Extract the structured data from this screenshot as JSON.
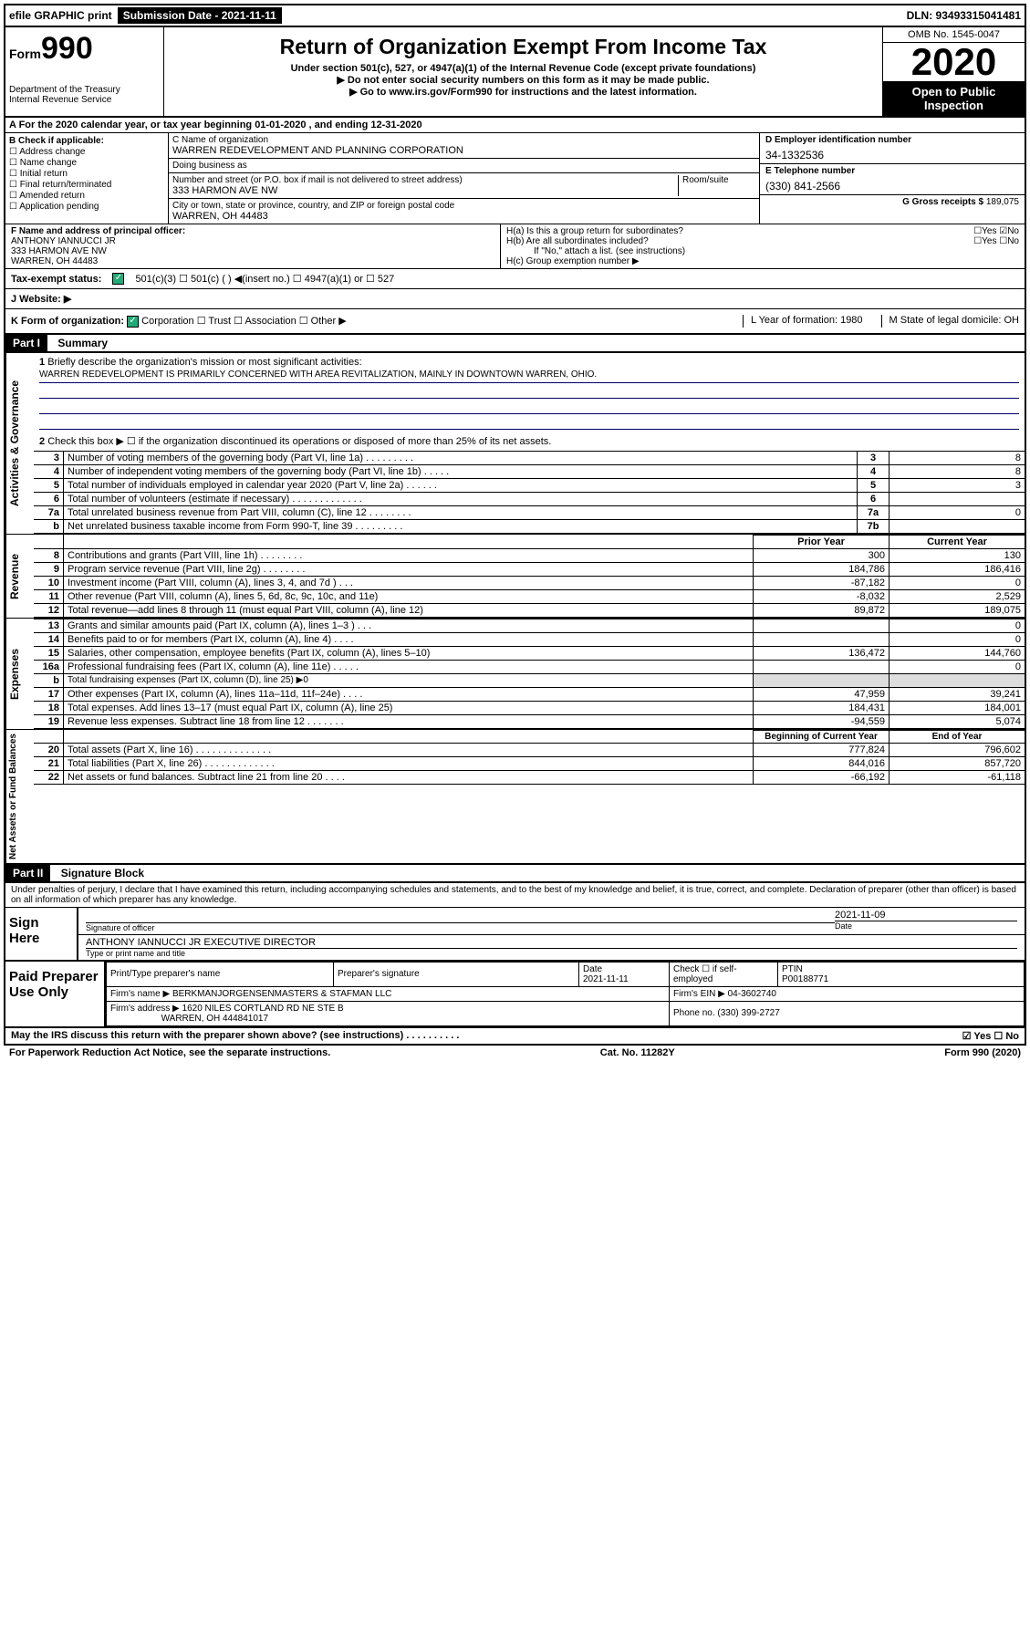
{
  "top": {
    "efile": "efile GRAPHIC print",
    "submission": "Submission Date - 2021-11-11",
    "dln": "DLN: 93493315041481"
  },
  "header": {
    "form": "Form",
    "num": "990",
    "dept": "Department of the Treasury\nInternal Revenue Service",
    "title": "Return of Organization Exempt From Income Tax",
    "sub1": "Under section 501(c), 527, or 4947(a)(1) of the Internal Revenue Code (except private foundations)",
    "sub2": "▶ Do not enter social security numbers on this form as it may be made public.",
    "goto": "▶ Go to www.irs.gov/Form990 for instructions and the latest information.",
    "omb": "OMB No. 1545-0047",
    "year": "2020",
    "open": "Open to Public Inspection"
  },
  "A": "A For the 2020 calendar year, or tax year beginning 01-01-2020    , and ending 12-31-2020",
  "B": {
    "label": "B Check if applicable:",
    "items": [
      "☐ Address change",
      "☐ Name change",
      "☐ Initial return",
      "☐ Final return/terminated",
      "☐ Amended return",
      "☐ Application pending"
    ]
  },
  "C": {
    "name_label": "C Name of organization",
    "name": "WARREN REDEVELOPMENT AND PLANNING CORPORATION",
    "dba_label": "Doing business as",
    "dba": "",
    "addr_label": "Number and street (or P.O. box if mail is not delivered to street address)",
    "room_label": "Room/suite",
    "addr": "333 HARMON AVE NW",
    "city_label": "City or town, state or province, country, and ZIP or foreign postal code",
    "city": "WARREN, OH  44483"
  },
  "D": {
    "label": "D Employer identification number",
    "val": "34-1332536"
  },
  "E": {
    "label": "E Telephone number",
    "val": "(330) 841-2566"
  },
  "G": {
    "label": "G Gross receipts $",
    "val": "189,075"
  },
  "F": {
    "label": "F  Name and address of principal officer:",
    "name": "ANTHONY IANNUCCI JR",
    "addr": "333 HARMON AVE NW",
    "city": "WARREN, OH  44483"
  },
  "H": {
    "a": "H(a)  Is this a group return for subordinates?",
    "a_yn": "☐Yes ☑No",
    "b": "H(b)  Are all subordinates included?",
    "b_yn": "☐Yes ☐No",
    "b_note": "If \"No,\" attach a list. (see instructions)",
    "c": "H(c)  Group exemption number ▶"
  },
  "I": {
    "label": "Tax-exempt status:",
    "opts": "501(c)(3)    ☐  501(c) (  ) ◀(insert no.)    ☐  4947(a)(1) or   ☐  527"
  },
  "J": "J   Website: ▶",
  "K": {
    "label": "K Form of organization:",
    "opts": "Corporation  ☐ Trust  ☐ Association  ☐ Other ▶",
    "L": "L Year of formation: 1980",
    "M": "M State of legal domicile: OH"
  },
  "part1": "Part I",
  "part1_title": "Summary",
  "governance": {
    "l1": "Briefly describe the organization's mission or most significant activities:",
    "mission": "WARREN REDEVELOPMENT IS PRIMARILY CONCERNED WITH AREA REVITALIZATION, MAINLY IN DOWNTOWN WARREN, OHIO.",
    "l2": "Check this box ▶ ☐  if the organization discontinued its operations or disposed of more than 25% of its net assets.",
    "rows": [
      {
        "n": "3",
        "d": "Number of voting members of the governing body (Part VI, line 1a)  .   .   .   .   .   .   .   .   .",
        "b": "3",
        "v": "8"
      },
      {
        "n": "4",
        "d": "Number of independent voting members of the governing body (Part VI, line 1b)  .   .   .   .   .",
        "b": "4",
        "v": "8"
      },
      {
        "n": "5",
        "d": "Total number of individuals employed in calendar year 2020 (Part V, line 2a)  .   .   .   .   .   .",
        "b": "5",
        "v": "3"
      },
      {
        "n": "6",
        "d": "Total number of volunteers (estimate if necessary)  .   .   .   .   .   .   .   .   .   .   .   .   .",
        "b": "6",
        "v": ""
      },
      {
        "n": "7a",
        "d": "Total unrelated business revenue from Part VIII, column (C), line 12  .   .   .   .   .   .   .   .",
        "b": "7a",
        "v": "0"
      },
      {
        "n": "b",
        "d": "Net unrelated business taxable income from Form 990-T, line 39  .   .   .   .   .   .   .   .   .",
        "b": "7b",
        "v": ""
      }
    ]
  },
  "revenue": {
    "head_prior": "Prior Year",
    "head_cur": "Current Year",
    "rows": [
      {
        "n": "8",
        "d": "Contributions and grants (Part VIII, line 1h)  .   .   .   .   .   .   .   .",
        "p": "300",
        "c": "130"
      },
      {
        "n": "9",
        "d": "Program service revenue (Part VIII, line 2g)  .   .   .   .   .   .   .   .",
        "p": "184,786",
        "c": "186,416"
      },
      {
        "n": "10",
        "d": "Investment income (Part VIII, column (A), lines 3, 4, and 7d )  .   .   .",
        "p": "-87,182",
        "c": "0"
      },
      {
        "n": "11",
        "d": "Other revenue (Part VIII, column (A), lines 5, 6d, 8c, 9c, 10c, and 11e)",
        "p": "-8,032",
        "c": "2,529"
      },
      {
        "n": "12",
        "d": "Total revenue—add lines 8 through 11 (must equal Part VIII, column (A), line 12)",
        "p": "89,872",
        "c": "189,075"
      }
    ]
  },
  "expenses": {
    "rows": [
      {
        "n": "13",
        "d": "Grants and similar amounts paid (Part IX, column (A), lines 1–3 )  .   .   .",
        "p": "",
        "c": "0"
      },
      {
        "n": "14",
        "d": "Benefits paid to or for members (Part IX, column (A), line 4)  .   .   .   .",
        "p": "",
        "c": "0"
      },
      {
        "n": "15",
        "d": "Salaries, other compensation, employee benefits (Part IX, column (A), lines 5–10)",
        "p": "136,472",
        "c": "144,760"
      },
      {
        "n": "16a",
        "d": "Professional fundraising fees (Part IX, column (A), line 11e)  .   .   .   .   .",
        "p": "",
        "c": "0"
      },
      {
        "n": "b",
        "d": "Total fundraising expenses (Part IX, column (D), line 25) ▶0",
        "p": "",
        "c": "",
        "noval": true
      },
      {
        "n": "17",
        "d": "Other expenses (Part IX, column (A), lines 11a–11d, 11f–24e)  .   .   .   .",
        "p": "47,959",
        "c": "39,241"
      },
      {
        "n": "18",
        "d": "Total expenses. Add lines 13–17 (must equal Part IX, column (A), line 25)",
        "p": "184,431",
        "c": "184,001"
      },
      {
        "n": "19",
        "d": "Revenue less expenses. Subtract line 18 from line 12  .   .   .   .   .   .   .",
        "p": "-94,559",
        "c": "5,074"
      }
    ]
  },
  "netassets": {
    "head_prior": "Beginning of Current Year",
    "head_cur": "End of Year",
    "rows": [
      {
        "n": "20",
        "d": "Total assets (Part X, line 16)  .   .   .   .   .   .   .   .   .   .   .   .   .   .",
        "p": "777,824",
        "c": "796,602"
      },
      {
        "n": "21",
        "d": "Total liabilities (Part X, line 26)  .   .   .   .   .   .   .   .   .   .   .   .   .",
        "p": "844,016",
        "c": "857,720"
      },
      {
        "n": "22",
        "d": "Net assets or fund balances. Subtract line 21 from line 20  .   .   .   .",
        "p": "-66,192",
        "c": "-61,118"
      }
    ]
  },
  "part2": "Part II",
  "part2_title": "Signature Block",
  "sig": {
    "perjury": "Under penalties of perjury, I declare that I have examined this return, including accompanying schedules and statements, and to the best of my knowledge and belief, it is true, correct, and complete. Declaration of preparer (other than officer) is based on all information of which preparer has any knowledge.",
    "sign_here": "Sign Here",
    "sig_officer": "Signature of officer",
    "date": "2021-11-09",
    "date_label": "Date",
    "name": "ANTHONY IANNUCCI JR  EXECUTIVE DIRECTOR",
    "name_label": "Type or print name and title",
    "paid": "Paid Preparer Use Only",
    "prep_name_label": "Print/Type preparer's name",
    "prep_sig_label": "Preparer's signature",
    "prep_date": "2021-11-11",
    "self_emp": "Check ☐ if self-employed",
    "ptin_label": "PTIN",
    "ptin": "P00188771",
    "firm_name_label": "Firm's name    ▶",
    "firm_name": "BERKMANJORGENSENMASTERS & STAFMAN LLC",
    "firm_ein_label": "Firm's EIN ▶",
    "firm_ein": "04-3602740",
    "firm_addr_label": "Firm's address ▶",
    "firm_addr": "1620 NILES CORTLAND RD NE STE B",
    "firm_city": "WARREN, OH  444841017",
    "phone_label": "Phone no.",
    "phone": "(330) 399-2727"
  },
  "footer": {
    "discuss": "May the IRS discuss this return with the preparer shown above? (see instructions)   .   .   .   .   .   .   .   .   .   .",
    "yn": "☑ Yes  ☐ No",
    "paperwork": "For Paperwork Reduction Act Notice, see the separate instructions.",
    "cat": "Cat. No. 11282Y",
    "form": "Form 990 (2020)"
  }
}
